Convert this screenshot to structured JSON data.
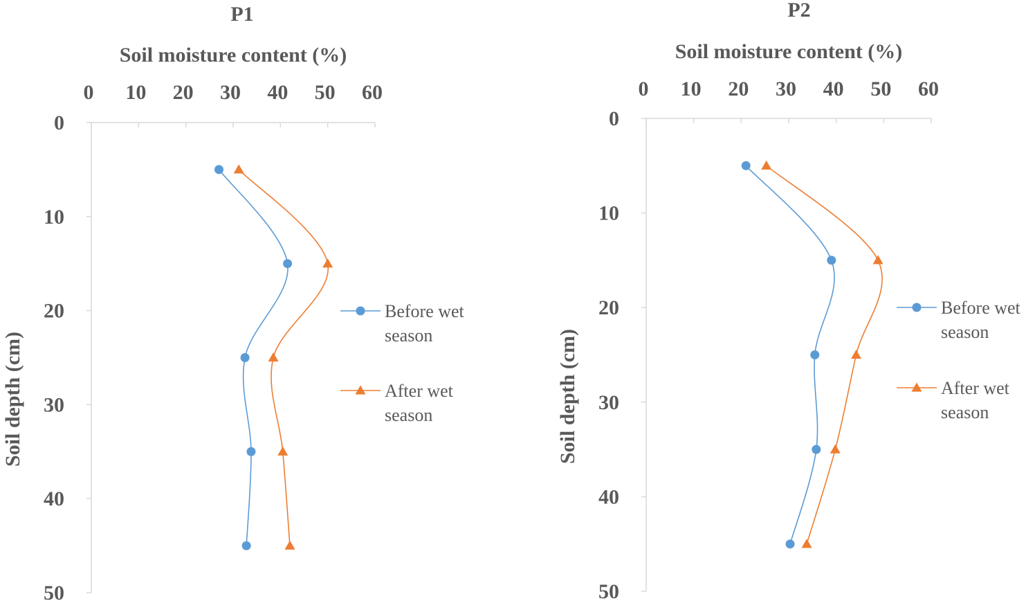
{
  "chart_data": [
    {
      "type": "line",
      "title": "P1",
      "xlabel": "Soil moisture content (%)",
      "ylabel": "Soil depth (cm)",
      "xlim": [
        0,
        60
      ],
      "ylim": [
        0,
        50
      ],
      "x_ticks": [
        "0",
        "10",
        "20",
        "30",
        "40",
        "50",
        "60"
      ],
      "y_ticks": [
        "0",
        "10",
        "20",
        "30",
        "40",
        "50"
      ],
      "x_axis_position": "top",
      "y_axis_inverted": true,
      "grid": false,
      "legend_position": "right",
      "series": [
        {
          "name": "Before wet season",
          "color": "#5b9bd5",
          "marker": "circle",
          "points": [
            [
              27,
              5
            ],
            [
              41.5,
              15
            ],
            [
              32.5,
              25
            ],
            [
              33.8,
              35
            ],
            [
              32.8,
              45
            ]
          ]
        },
        {
          "name": "After wet season",
          "color": "#ed7d31",
          "marker": "triangle",
          "points": [
            [
              31.2,
              5
            ],
            [
              50,
              15
            ],
            [
              38.5,
              25
            ],
            [
              40.5,
              35
            ],
            [
              42,
              45
            ]
          ]
        }
      ]
    },
    {
      "type": "line",
      "title": "P2",
      "xlabel": "Soil moisture content (%)",
      "ylabel": "Soil depth (cm)",
      "xlim": [
        0,
        60
      ],
      "ylim": [
        0,
        50
      ],
      "x_ticks": [
        "0",
        "10",
        "20",
        "30",
        "40",
        "50",
        "60"
      ],
      "y_ticks": [
        "0",
        "10",
        "20",
        "30",
        "40",
        "50"
      ],
      "x_axis_position": "top",
      "y_axis_inverted": true,
      "grid": false,
      "legend_position": "right",
      "series": [
        {
          "name": "Before wet season",
          "color": "#5b9bd5",
          "marker": "circle",
          "points": [
            [
              21,
              5
            ],
            [
              39,
              15
            ],
            [
              35.5,
              25
            ],
            [
              35.8,
              35
            ],
            [
              30.3,
              45
            ]
          ]
        },
        {
          "name": "After wet season",
          "color": "#ed7d31",
          "marker": "triangle",
          "points": [
            [
              25.3,
              5
            ],
            [
              48.8,
              15
            ],
            [
              44.2,
              25
            ],
            [
              39.8,
              35
            ],
            [
              33.8,
              45
            ]
          ]
        }
      ]
    }
  ]
}
